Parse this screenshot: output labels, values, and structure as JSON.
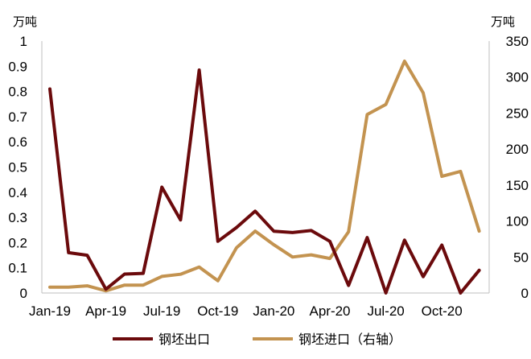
{
  "chart_data": {
    "type": "line",
    "left_unit": "万吨",
    "right_unit": "万吨",
    "x": [
      "2019-01",
      "2019-02",
      "2019-03",
      "2019-04",
      "2019-05",
      "2019-06",
      "2019-07",
      "2019-08",
      "2019-09",
      "2019-10",
      "2019-11",
      "2019-12",
      "2020-01",
      "2020-02",
      "2020-03",
      "2020-04",
      "2020-05",
      "2020-06",
      "2020-07",
      "2020-08",
      "2020-09",
      "2020-10",
      "2020-11",
      "2020-12"
    ],
    "x_tick_labels": [
      "Jan-19",
      "Apr-19",
      "Jul-19",
      "Oct-19",
      "Jan-20",
      "Apr-20",
      "Jul-20",
      "Oct-20"
    ],
    "x_tick_indices": [
      0,
      3,
      6,
      9,
      12,
      15,
      18,
      21
    ],
    "left_axis": {
      "min": 0,
      "max": 1,
      "ticks": [
        "0",
        "0.1",
        "0.2",
        "0.3",
        "0.4",
        "0.5",
        "0.6",
        "0.7",
        "0.8",
        "0.9",
        "1"
      ]
    },
    "right_axis": {
      "min": 0,
      "max": 350,
      "ticks": [
        "0",
        "50",
        "100",
        "150",
        "200",
        "250",
        "300",
        "350"
      ]
    },
    "series": [
      {
        "name": "钢坯出口",
        "axis": "left",
        "color": "#6b0a0c",
        "values": [
          0.81,
          0.16,
          0.15,
          0.015,
          0.075,
          0.078,
          0.42,
          0.29,
          0.885,
          0.205,
          0.26,
          0.325,
          0.245,
          0.24,
          0.248,
          0.205,
          0.03,
          0.22,
          0.0,
          0.21,
          0.065,
          0.19,
          0.0,
          0.09
        ]
      },
      {
        "name": "钢坯进口（右轴）",
        "axis": "right",
        "color": "#c39350",
        "values": [
          8,
          8,
          10,
          3,
          11,
          11,
          23,
          26,
          36,
          17,
          63,
          86,
          67,
          50,
          53,
          48,
          85,
          248,
          262,
          322,
          278,
          162,
          169,
          86
        ]
      }
    ],
    "grid": false,
    "legend_position": "bottom"
  }
}
